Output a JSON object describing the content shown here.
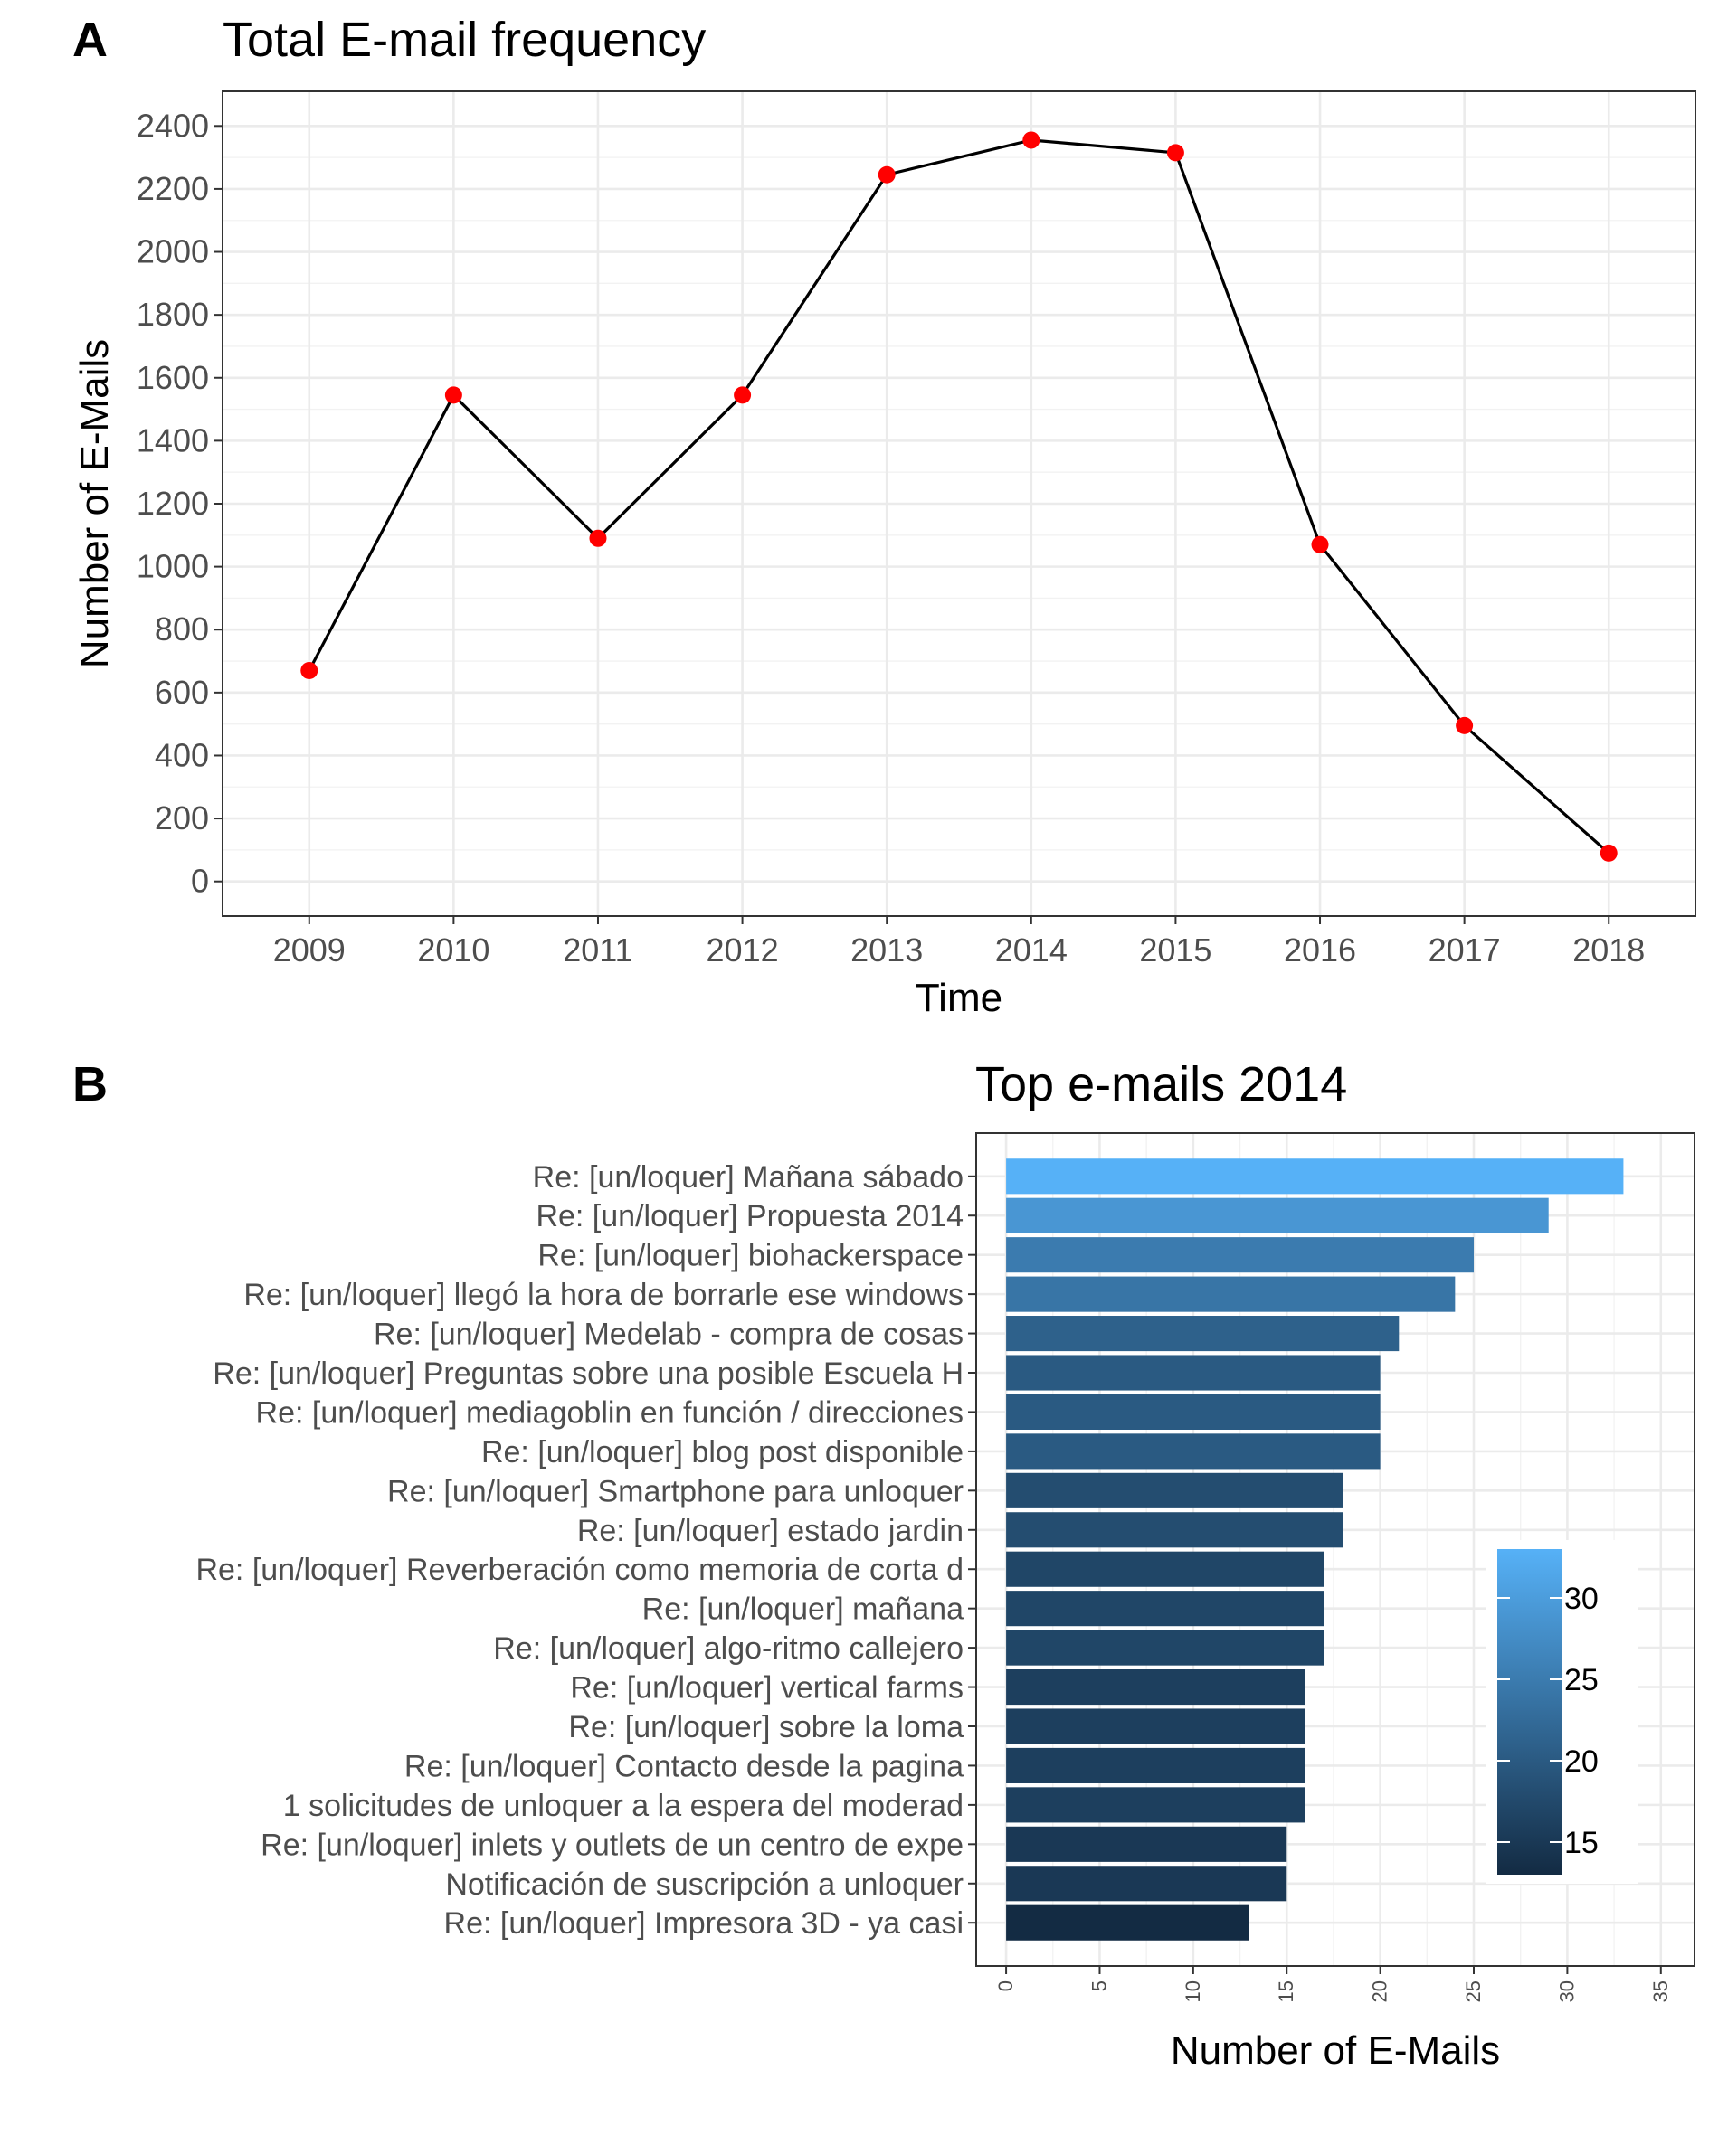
{
  "chart_data": [
    {
      "panel": "A",
      "type": "line",
      "title": "Total E-mail frequency",
      "xlabel": "Time",
      "ylabel": "Number of E-Mails",
      "x": [
        "2009",
        "2010",
        "2011",
        "2012",
        "2013",
        "2014",
        "2015",
        "2016",
        "2017",
        "2018"
      ],
      "values": [
        670,
        1545,
        1090,
        1545,
        2245,
        2355,
        2315,
        1070,
        495,
        90
      ],
      "ylim": [
        -110,
        2510
      ],
      "yticks": [
        0,
        200,
        400,
        600,
        800,
        1000,
        1200,
        1400,
        1600,
        1800,
        2000,
        2200,
        2400
      ],
      "line_color": "#000000",
      "point_color": "#ff0000",
      "grid": true
    },
    {
      "panel": "B",
      "type": "bar",
      "orientation": "horizontal",
      "title": "Top e-mails 2014",
      "xlabel": "Number of E-Mails",
      "ylabel": "",
      "categories": [
        "Re: [un/loquer] Mañana sábado",
        "Re: [un/loquer] Propuesta 2014",
        "Re: [un/loquer] biohackerspace",
        "Re: [un/loquer] llegó la hora de borrarle ese windows",
        "Re: [un/loquer] Medelab - compra de cosas",
        "Re: [un/loquer] Preguntas sobre una posible Escuela H",
        "Re: [un/loquer] mediagoblin en función / direcciones ",
        "Re: [un/loquer] blog post disponible",
        "Re: [un/loquer] Smartphone para unloquer",
        "Re: [un/loquer] estado jardin",
        "Re: [un/loquer] Reverberación como memoria de corta d",
        "Re: [un/loquer] mañana",
        "Re: [un/loquer] algo-ritmo callejero",
        "Re: [un/loquer] vertical farms",
        "Re: [un/loquer] sobre la loma",
        "Re: [un/loquer] Contacto desde la pagina",
        "1 solicitudes de unloquer a la espera del moderad",
        "Re: [un/loquer] inlets y outlets de un centro de expe",
        "Notificación de suscripción a unloquer",
        "Re: [un/loquer] Impresora 3D - ya casi"
      ],
      "values": [
        33,
        29,
        25,
        24,
        21,
        20,
        20,
        20,
        18,
        18,
        17,
        17,
        17,
        16,
        16,
        16,
        16,
        15,
        15,
        13
      ],
      "xlim": [
        -1.6,
        36.8
      ],
      "xticks": [
        0,
        5,
        10,
        15,
        20,
        25,
        30,
        35
      ],
      "grid": true,
      "legend": {
        "position": "inside-bottom-right",
        "range": [
          13,
          33
        ],
        "breaks": [
          15,
          20,
          25,
          30
        ],
        "low_color": "#132b43",
        "high_color": "#56b1f7"
      }
    }
  ]
}
